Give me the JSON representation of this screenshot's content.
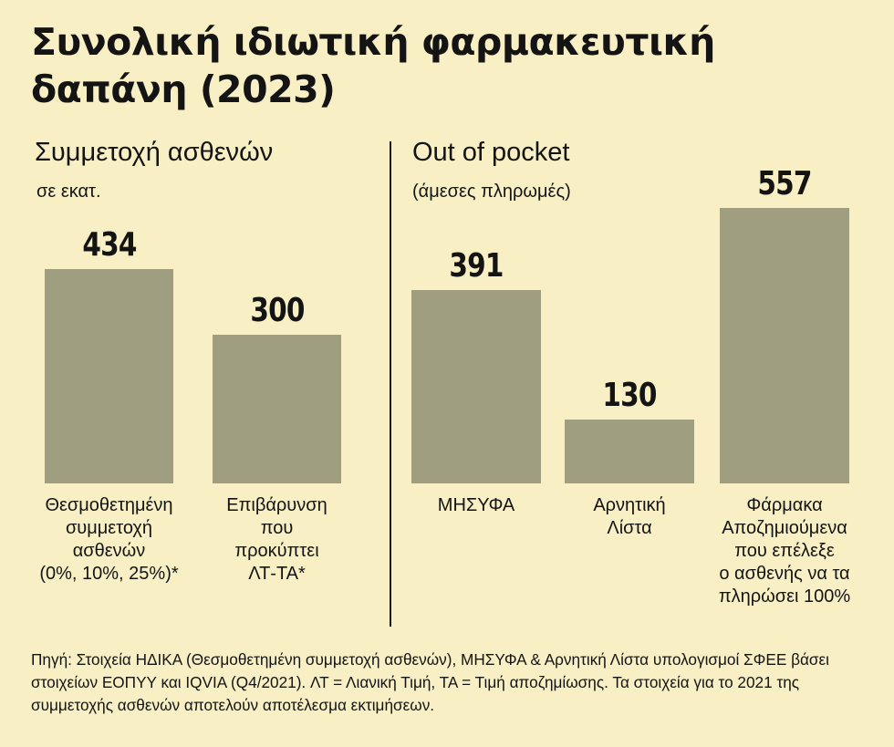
{
  "title": "Συνολική ιδιωτική φαρμακευτική δαπάνη (2023)",
  "left_panel": {
    "heading": "Συμμετοχή ασθενών",
    "note": "σε εκατ."
  },
  "right_panel": {
    "heading": "Out of pocket",
    "note": "(άμεσες πληρωμές)"
  },
  "source": "Πηγή: Στοιχεία ΗΔΙΚΑ (Θεσμοθετημένη συμμετοχή ασθενών), ΜΗΣΥΦΑ & Αρνητική Λίστα υπολογισμοί ΣΦΕΕ βάσει στοιχείων ΕΟΠΥΥ και IQVIA (Q4/2021). ΛΤ = Λιανική Τιμή, ΤΑ = Τιμή αποζημίωσης. Τα στοιχεία για το 2021 της συμμετοχής ασθενών αποτελούν αποτέλεσμα εκτιμήσεων.",
  "colors": {
    "background": "#f8efc4",
    "bar": "#9f9e80",
    "text": "#141414"
  },
  "chart_data": [
    {
      "type": "bar",
      "title": "Συμμετοχή ασθενών",
      "ylabel": "σε εκατ.",
      "categories": [
        "Θεσμοθετημένη\nσυμμετοχή\nασθενών\n(0%, 10%, 25%)*",
        "Επιβάρυνση\nπου\nπροκύπτει\nΛΤ-ΤΑ*"
      ],
      "values": [
        434,
        300
      ],
      "value_labels": [
        "434",
        "300"
      ],
      "ylim": [
        0,
        557
      ],
      "grid": false
    },
    {
      "type": "bar",
      "title": "Out of pocket",
      "ylabel": "(άμεσες πληρωμές)",
      "categories": [
        "ΜΗΣΥΦΑ",
        "Αρνητική\nΛίστα",
        "Φάρμακα\nΑποζημιούμενα\nπου επέλεξε\nο ασθενής να τα\nπληρώσει 100%"
      ],
      "values": [
        391,
        130,
        557
      ],
      "value_labels": [
        "391",
        "130",
        "557"
      ],
      "ylim": [
        0,
        557
      ],
      "grid": false
    }
  ]
}
